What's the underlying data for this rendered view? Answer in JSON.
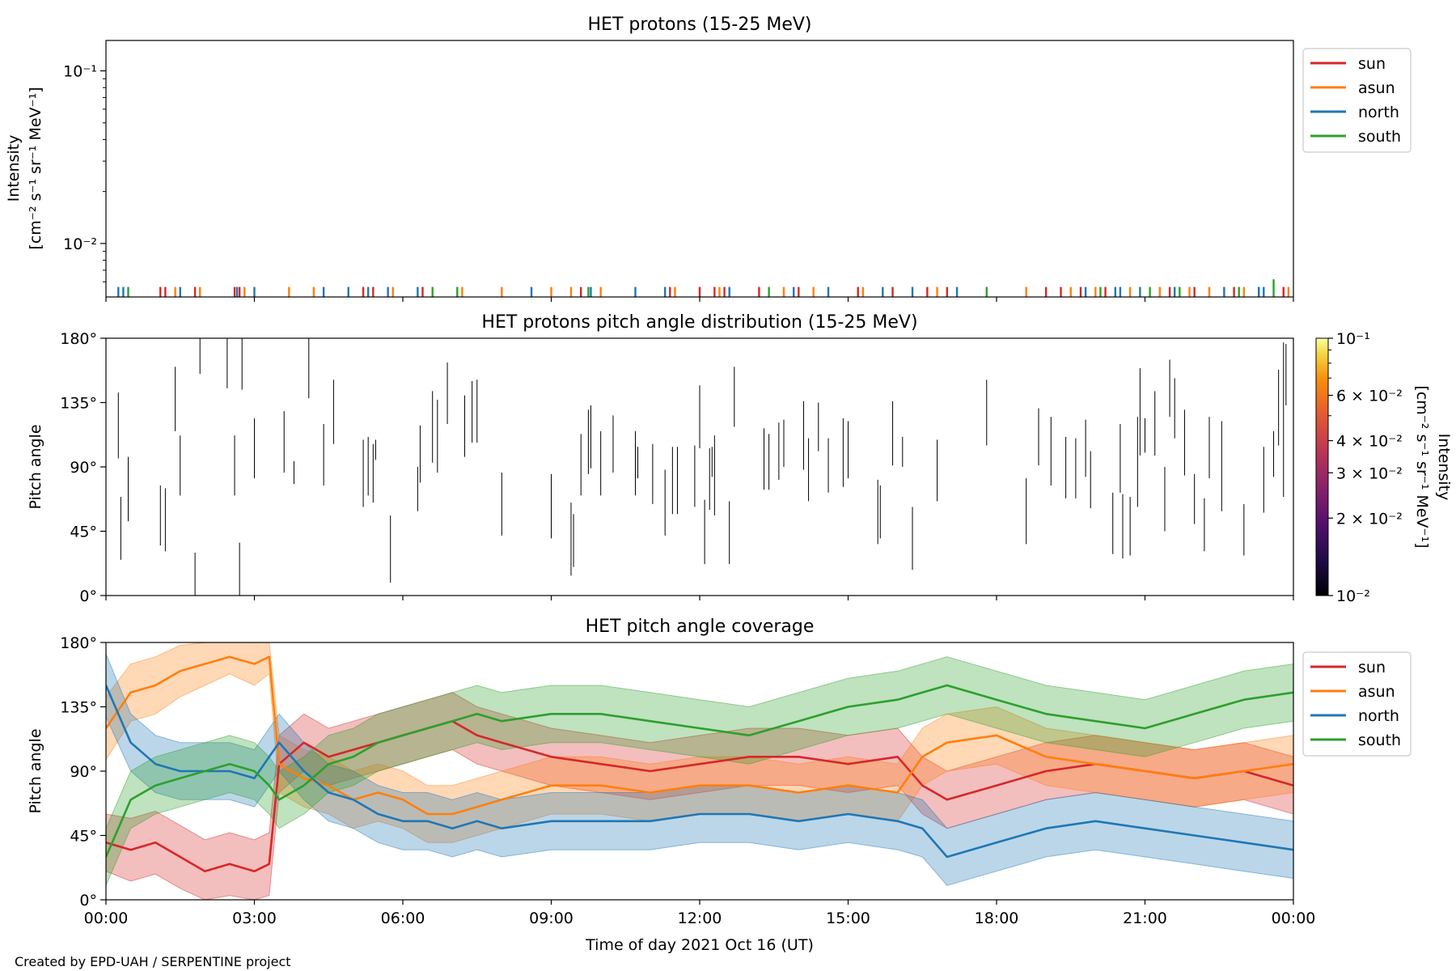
{
  "figure": {
    "credit": "Created by EPD-UAH / SERPENTINE project",
    "xlabel": "Time of day 2021 Oct 16 (UT)",
    "x_tick_labels": [
      "00:00",
      "03:00",
      "06:00",
      "09:00",
      "12:00",
      "15:00",
      "18:00",
      "21:00",
      "00:00"
    ],
    "colors": {
      "sun": "#d62728",
      "asun": "#ff7f0e",
      "north": "#1f77b4",
      "south": "#2ca02c"
    }
  },
  "chart_data": [
    {
      "id": "intensity",
      "type": "line",
      "title": "HET protons (15-25 MeV)",
      "ylabel_lines": [
        "Intensity",
        "[cm⁻² s⁻¹ sr⁻¹ MeV⁻¹]"
      ],
      "yscale": "log",
      "ylim": [
        0.0049,
        0.15
      ],
      "xlim_hours": [
        0,
        24
      ],
      "y_tick_labels": [
        "10⁻²",
        "10⁻¹"
      ],
      "legend": {
        "placement": "upper-right-outside",
        "entries": [
          "sun",
          "asun",
          "north",
          "south"
        ]
      },
      "series": [
        {
          "name": "sun",
          "color": "#d62728",
          "spike_times_hours": [
            1.1,
            1.2,
            1.8,
            2.6,
            2.7,
            5.2,
            5.4,
            6.4,
            9.6,
            11.4,
            12.0,
            12.3,
            12.5,
            13.2,
            14.0,
            15.2,
            15.9,
            16.6,
            17.0,
            19.0,
            19.3,
            19.7,
            20.2,
            21.5,
            22.0,
            22.8,
            23.3,
            23.8
          ],
          "values": [
            0.0056,
            0.0056,
            0.0056,
            0.0056,
            0.0056,
            0.0056,
            0.0056,
            0.0056,
            0.0056,
            0.0056,
            0.0056,
            0.0056,
            0.0056,
            0.0056,
            0.0056,
            0.0056,
            0.0056,
            0.0056,
            0.0056,
            0.0056,
            0.0056,
            0.0056,
            0.0056,
            0.0056,
            0.0056,
            0.0056,
            0.0056,
            0.0056
          ]
        },
        {
          "name": "asun",
          "color": "#ff7f0e",
          "spike_times_hours": [
            1.4,
            1.9,
            2.8,
            3.7,
            4.2,
            5.8,
            7.2,
            8.0,
            9.0,
            9.4,
            10.0,
            11.5,
            12.4,
            13.7,
            14.3,
            15.3,
            16.8,
            18.6,
            19.5,
            20.0,
            20.7,
            21.3,
            21.9,
            22.3,
            23.0,
            23.9
          ],
          "values": [
            0.0056,
            0.0056,
            0.0056,
            0.0056,
            0.0056,
            0.0056,
            0.0056,
            0.0056,
            0.0056,
            0.0056,
            0.0056,
            0.0056,
            0.0056,
            0.0056,
            0.0056,
            0.0056,
            0.0056,
            0.0056,
            0.0056,
            0.0056,
            0.0056,
            0.0056,
            0.0056,
            0.0056,
            0.0056,
            0.0056
          ]
        },
        {
          "name": "north",
          "color": "#1f77b4",
          "spike_times_hours": [
            0.25,
            0.35,
            1.5,
            2.65,
            3.0,
            4.4,
            4.9,
            5.3,
            5.7,
            6.3,
            8.6,
            9.8,
            10.7,
            11.3,
            12.6,
            13.9,
            14.6,
            15.7,
            16.3,
            17.2,
            19.8,
            20.4,
            20.5,
            20.9,
            21.6,
            22.6,
            23.3,
            23.4
          ],
          "values": [
            0.0056,
            0.0056,
            0.0056,
            0.0056,
            0.0056,
            0.0056,
            0.0056,
            0.0056,
            0.0056,
            0.0056,
            0.0056,
            0.0056,
            0.0056,
            0.0056,
            0.0056,
            0.0056,
            0.0056,
            0.0056,
            0.0056,
            0.0056,
            0.0056,
            0.0056,
            0.0056,
            0.0056,
            0.0056,
            0.0056,
            0.0056,
            0.0056
          ]
        },
        {
          "name": "south",
          "color": "#2ca02c",
          "spike_times_hours": [
            0.45,
            6.6,
            7.1,
            9.75,
            13.4,
            17.8,
            20.1,
            21.1,
            21.7,
            22.9,
            23.6
          ],
          "values": [
            0.0056,
            0.0056,
            0.0056,
            0.0056,
            0.0056,
            0.0056,
            0.0056,
            0.0056,
            0.0056,
            0.0056,
            0.0062
          ]
        }
      ]
    },
    {
      "id": "pad",
      "type": "heatmap",
      "title": "HET protons pitch angle distribution (15-25 MeV)",
      "ylabel": "Pitch angle",
      "ylim_deg": [
        0,
        180
      ],
      "xlim_hours": [
        0,
        24
      ],
      "y_tick_labels": [
        "0°",
        "45°",
        "90°",
        "135°",
        "180°"
      ],
      "colorbar": {
        "label_lines": [
          "Intensity",
          "[cm⁻² s⁻¹ sr⁻¹ MeV⁻¹]"
        ],
        "scale": "log",
        "range": [
          0.01,
          0.1
        ],
        "colormap": "inferno",
        "tick_labels": [
          "10⁻²",
          "2 × 10⁻²",
          "3 × 10⁻²",
          "4 × 10⁻²",
          "6 × 10⁻²",
          "10⁻¹"
        ],
        "tick_values": [
          0.01,
          0.02,
          0.03,
          0.04,
          0.06,
          0.1
        ]
      },
      "segments_hours_deg": [
        [
          0.25,
          96,
          142
        ],
        [
          0.3,
          25,
          69
        ],
        [
          0.45,
          52,
          97
        ],
        [
          1.1,
          35,
          77
        ],
        [
          1.2,
          31,
          75
        ],
        [
          1.4,
          115,
          160
        ],
        [
          1.5,
          70,
          112
        ],
        [
          1.8,
          0,
          30
        ],
        [
          1.9,
          155,
          180
        ],
        [
          2.45,
          145,
          180
        ],
        [
          2.6,
          70,
          112
        ],
        [
          2.7,
          0,
          37
        ],
        [
          2.75,
          144,
          180
        ],
        [
          3.0,
          82,
          124
        ],
        [
          3.6,
          86,
          129
        ],
        [
          3.8,
          78,
          94
        ],
        [
          4.1,
          138,
          180
        ],
        [
          4.4,
          77,
          120
        ],
        [
          4.6,
          106,
          151
        ],
        [
          5.2,
          62,
          109
        ],
        [
          5.3,
          70,
          111
        ],
        [
          5.4,
          65,
          106
        ],
        [
          5.45,
          95,
          109
        ],
        [
          5.75,
          9,
          56
        ],
        [
          6.3,
          59,
          90
        ],
        [
          6.35,
          79,
          119
        ],
        [
          6.6,
          93,
          143
        ],
        [
          6.7,
          86,
          137
        ],
        [
          6.9,
          120,
          163
        ],
        [
          7.25,
          97,
          140
        ],
        [
          7.4,
          107,
          150
        ],
        [
          7.5,
          107,
          151
        ],
        [
          8.0,
          42,
          86
        ],
        [
          9.0,
          40,
          85
        ],
        [
          9.4,
          14,
          65
        ],
        [
          9.45,
          20,
          57
        ],
        [
          9.6,
          70,
          113
        ],
        [
          9.75,
          85,
          130
        ],
        [
          9.8,
          89,
          133
        ],
        [
          10.0,
          70,
          115
        ],
        [
          10.25,
          86,
          126
        ],
        [
          10.7,
          70,
          115
        ],
        [
          10.75,
          82,
          104
        ],
        [
          11.05,
          64,
          106
        ],
        [
          11.3,
          42,
          88
        ],
        [
          11.45,
          57,
          104
        ],
        [
          11.55,
          57,
          104
        ],
        [
          11.9,
          62,
          105
        ],
        [
          12.0,
          103,
          147
        ],
        [
          12.1,
          22,
          67
        ],
        [
          12.2,
          60,
          103
        ],
        [
          12.25,
          83,
          104
        ],
        [
          12.3,
          56,
          112
        ],
        [
          12.6,
          22,
          66
        ],
        [
          12.7,
          118,
          160
        ],
        [
          13.3,
          74,
          117
        ],
        [
          13.4,
          74,
          113
        ],
        [
          13.6,
          81,
          121
        ],
        [
          13.7,
          90,
          123
        ],
        [
          14.1,
          88,
          136
        ],
        [
          14.2,
          66,
          110
        ],
        [
          14.4,
          101,
          135
        ],
        [
          14.6,
          72,
          110
        ],
        [
          14.9,
          76,
          124
        ],
        [
          15.0,
          82,
          122
        ],
        [
          15.6,
          36,
          81
        ],
        [
          15.65,
          40,
          77
        ],
        [
          15.9,
          91,
          136
        ],
        [
          16.1,
          90,
          111
        ],
        [
          16.3,
          18,
          62
        ],
        [
          16.8,
          66,
          109
        ],
        [
          17.8,
          105,
          151
        ],
        [
          18.6,
          36,
          82
        ],
        [
          18.85,
          91,
          131
        ],
        [
          19.1,
          77,
          125
        ],
        [
          19.4,
          68,
          111
        ],
        [
          19.6,
          68,
          110
        ],
        [
          19.8,
          83,
          123
        ],
        [
          19.9,
          61,
          101
        ],
        [
          20.35,
          29,
          72
        ],
        [
          20.5,
          72,
          120
        ],
        [
          20.55,
          26,
          71
        ],
        [
          20.7,
          28,
          69
        ],
        [
          20.85,
          62,
          125
        ],
        [
          20.9,
          98,
          159
        ],
        [
          21.0,
          100,
          124
        ],
        [
          21.2,
          98,
          143
        ],
        [
          21.4,
          45,
          90
        ],
        [
          21.5,
          125,
          165
        ],
        [
          21.6,
          110,
          152
        ],
        [
          21.8,
          84,
          130
        ],
        [
          22.0,
          50,
          85
        ],
        [
          22.2,
          31,
          68
        ],
        [
          22.3,
          82,
          125
        ],
        [
          22.55,
          59,
          122
        ],
        [
          23.0,
          28,
          64
        ],
        [
          23.4,
          58,
          104
        ],
        [
          23.6,
          83,
          115
        ],
        [
          23.7,
          105,
          158
        ],
        [
          23.8,
          69,
          177
        ],
        [
          23.85,
          133,
          176
        ]
      ]
    },
    {
      "id": "coverage",
      "type": "area",
      "title": "HET pitch angle coverage",
      "ylabel": "Pitch angle",
      "ylim_deg": [
        0,
        180
      ],
      "xlim_hours": [
        0,
        24
      ],
      "y_tick_labels": [
        "0°",
        "45°",
        "90°",
        "135°",
        "180°"
      ],
      "legend": {
        "placement": "upper-right-outside",
        "entries": [
          "sun",
          "asun",
          "north",
          "south"
        ]
      },
      "x_hours": [
        0,
        0.5,
        1,
        1.5,
        2,
        2.5,
        3,
        3.3,
        3.5,
        4,
        4.5,
        5,
        5.5,
        6,
        6.5,
        7,
        7.5,
        8,
        9,
        10,
        11,
        12,
        13,
        14,
        15,
        16,
        16.5,
        17,
        18,
        19,
        20,
        21,
        22,
        23,
        24
      ],
      "series": [
        {
          "name": "sun",
          "color": "#d62728",
          "center_deg": [
            40,
            35,
            40,
            30,
            20,
            25,
            20,
            25,
            95,
            110,
            100,
            105,
            110,
            115,
            120,
            125,
            115,
            110,
            100,
            95,
            90,
            95,
            100,
            100,
            95,
            100,
            80,
            70,
            80,
            90,
            95,
            90,
            85,
            90,
            80
          ],
          "halfwidth_deg": [
            20,
            22,
            22,
            22,
            22,
            22,
            22,
            22,
            20,
            20,
            20,
            20,
            20,
            20,
            20,
            20,
            20,
            20,
            20,
            20,
            20,
            20,
            20,
            20,
            20,
            20,
            20,
            20,
            20,
            20,
            20,
            20,
            20,
            20,
            20
          ]
        },
        {
          "name": "asun",
          "color": "#ff7f0e",
          "center_deg": [
            120,
            145,
            150,
            160,
            165,
            170,
            165,
            170,
            95,
            85,
            80,
            70,
            75,
            70,
            60,
            60,
            65,
            70,
            80,
            80,
            75,
            80,
            80,
            75,
            80,
            75,
            100,
            110,
            115,
            100,
            95,
            90,
            85,
            90,
            95
          ],
          "halfwidth_deg": [
            22,
            20,
            20,
            18,
            15,
            12,
            15,
            12,
            20,
            20,
            20,
            20,
            20,
            20,
            20,
            20,
            20,
            20,
            20,
            20,
            20,
            20,
            20,
            20,
            20,
            20,
            20,
            20,
            20,
            20,
            20,
            20,
            20,
            20,
            20
          ]
        },
        {
          "name": "north",
          "color": "#1f77b4",
          "center_deg": [
            150,
            110,
            95,
            90,
            90,
            90,
            85,
            100,
            110,
            90,
            75,
            70,
            60,
            55,
            55,
            50,
            55,
            50,
            55,
            55,
            55,
            60,
            60,
            55,
            60,
            55,
            50,
            30,
            40,
            50,
            55,
            50,
            45,
            40,
            35
          ],
          "halfwidth_deg": [
            22,
            20,
            20,
            20,
            20,
            20,
            20,
            20,
            20,
            20,
            20,
            20,
            20,
            20,
            20,
            20,
            20,
            20,
            20,
            20,
            20,
            20,
            20,
            20,
            20,
            20,
            20,
            20,
            20,
            20,
            20,
            20,
            20,
            20,
            20
          ]
        },
        {
          "name": "south",
          "color": "#2ca02c",
          "center_deg": [
            30,
            70,
            80,
            85,
            90,
            95,
            90,
            80,
            70,
            80,
            95,
            100,
            110,
            115,
            120,
            125,
            130,
            125,
            130,
            130,
            125,
            120,
            115,
            125,
            135,
            140,
            145,
            150,
            140,
            130,
            125,
            120,
            130,
            140,
            145
          ],
          "halfwidth_deg": [
            20,
            20,
            20,
            20,
            20,
            20,
            20,
            20,
            20,
            20,
            20,
            20,
            20,
            20,
            20,
            20,
            20,
            20,
            20,
            20,
            20,
            20,
            20,
            20,
            20,
            20,
            20,
            20,
            20,
            20,
            20,
            20,
            20,
            20,
            20
          ]
        }
      ]
    }
  ]
}
